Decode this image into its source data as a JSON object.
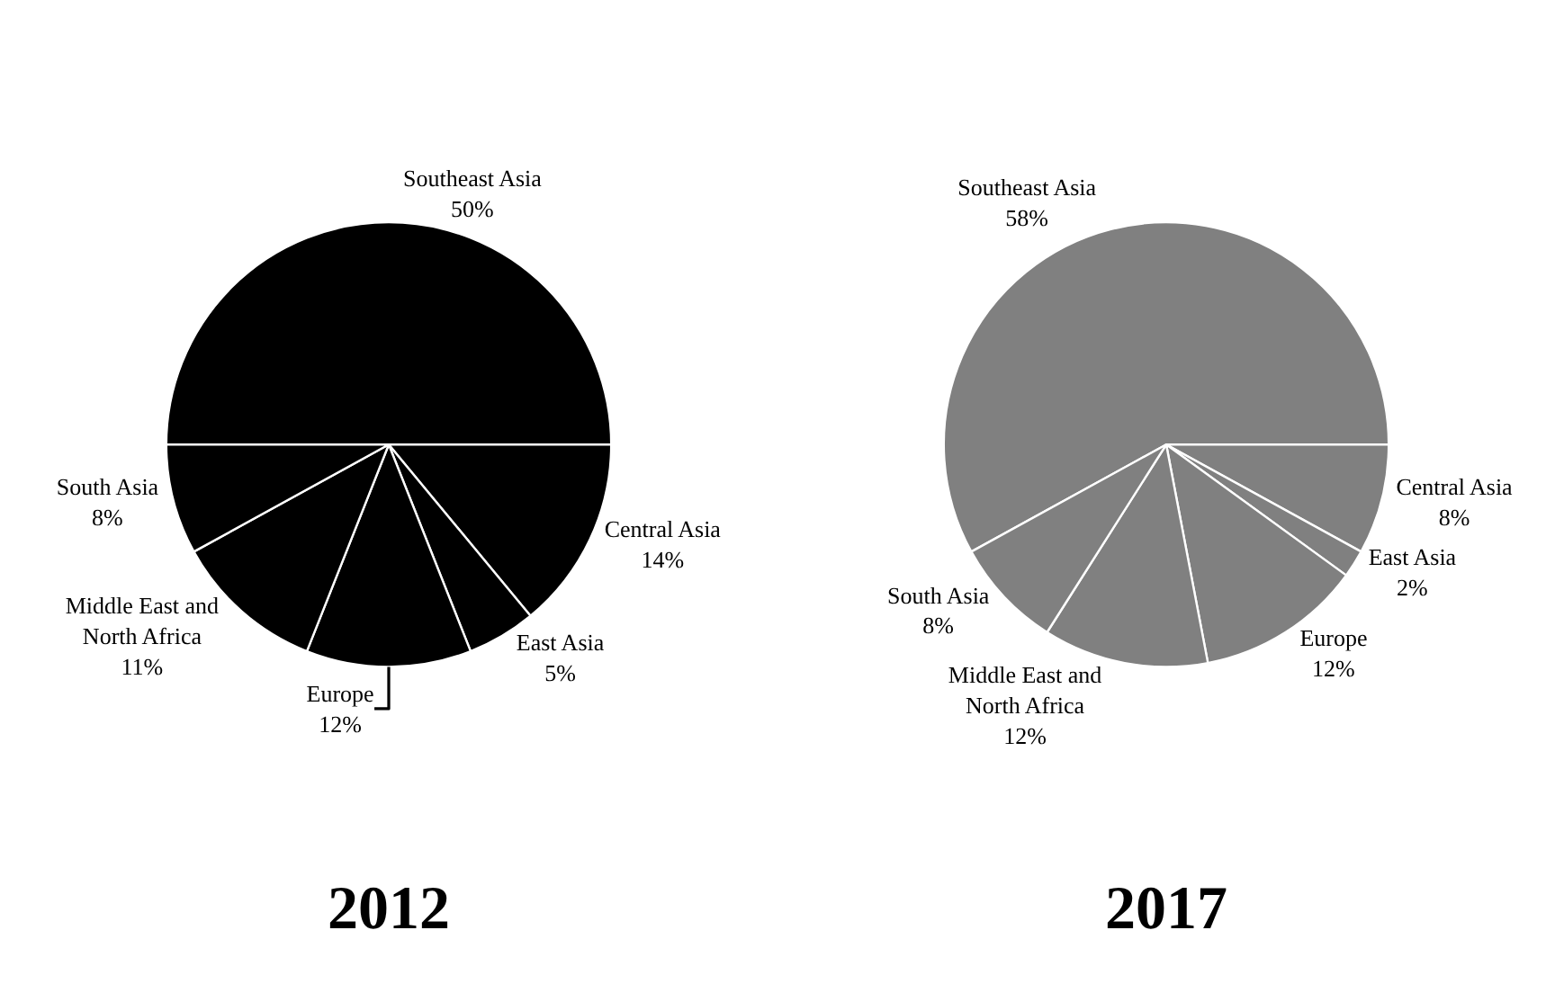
{
  "chart_data": [
    {
      "type": "pie",
      "title": "2012",
      "categories": [
        "Southeast Asia",
        "Central Asia",
        "East Asia",
        "Europe",
        "Middle East and North Africa",
        "South Asia"
      ],
      "values": [
        50,
        14,
        5,
        12,
        11,
        8
      ],
      "value_labels": [
        "50%",
        "14%",
        "5%",
        "12%",
        "11%",
        "8%"
      ],
      "colors": [
        "#000000",
        "#000000",
        "#000000",
        "#000000",
        "#000000",
        "#000000"
      ],
      "legend": false
    },
    {
      "type": "pie",
      "title": "2017",
      "categories": [
        "Southeast Asia",
        "Central Asia",
        "East Asia",
        "Europe",
        "Middle East and North Africa",
        "South Asia"
      ],
      "values": [
        58,
        8,
        2,
        12,
        12,
        8
      ],
      "value_labels": [
        "58%",
        "8%",
        "2%",
        "12%",
        "12%",
        "8%"
      ],
      "colors": [
        "#808080",
        "#808080",
        "#808080",
        "#808080",
        "#808080",
        "#808080"
      ],
      "legend": false
    }
  ]
}
